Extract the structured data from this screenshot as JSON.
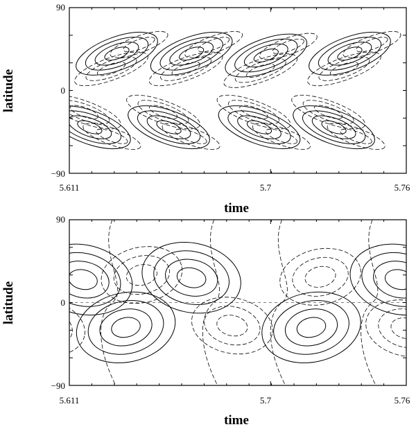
{
  "chart_data": [
    {
      "type": "contour",
      "xlabel": "time",
      "ylabel": "latitude",
      "xlim": [
        5.611,
        5.76
      ],
      "ylim": [
        -90,
        90
      ],
      "x_tick_labels": [
        "5.611",
        "5.7",
        "5.76"
      ],
      "y_tick_labels": [
        "90",
        "0",
        "−90"
      ],
      "x_ticks": [
        5.611,
        5.7,
        5.76
      ],
      "y_ticks": [
        90,
        0,
        -90
      ],
      "line_styles": [
        "solid (positive)",
        "dashed (negative)"
      ],
      "pattern": "poleward-migrating wave bands in both hemispheres",
      "positive_centers": [
        {
          "x": 5.632,
          "y": 40
        },
        {
          "x": 5.665,
          "y": 40
        },
        {
          "x": 5.698,
          "y": 38
        },
        {
          "x": 5.735,
          "y": 40
        },
        {
          "x": 5.62,
          "y": -40
        },
        {
          "x": 5.655,
          "y": -40
        },
        {
          "x": 5.695,
          "y": -40
        },
        {
          "x": 5.728,
          "y": -40
        }
      ]
    },
    {
      "type": "contour",
      "xlabel": "time",
      "ylabel": "latitude",
      "xlim": [
        5.611,
        5.76
      ],
      "ylim": [
        -90,
        90
      ],
      "x_tick_labels": [
        "5.611",
        "5.7",
        "5.76"
      ],
      "y_tick_labels": [
        "90",
        "0",
        "−90"
      ],
      "x_ticks": [
        5.611,
        5.7,
        5.76
      ],
      "y_ticks": [
        90,
        0,
        -90
      ],
      "line_styles": [
        "solid (positive)",
        "dashed (negative)"
      ],
      "pattern": "large cells alternating across the equator",
      "positive_centers": [
        {
          "x": 5.617,
          "y": 25
        },
        {
          "x": 5.665,
          "y": 27
        },
        {
          "x": 5.757,
          "y": 25
        },
        {
          "x": 5.636,
          "y": -27
        },
        {
          "x": 5.718,
          "y": -27
        }
      ]
    }
  ]
}
